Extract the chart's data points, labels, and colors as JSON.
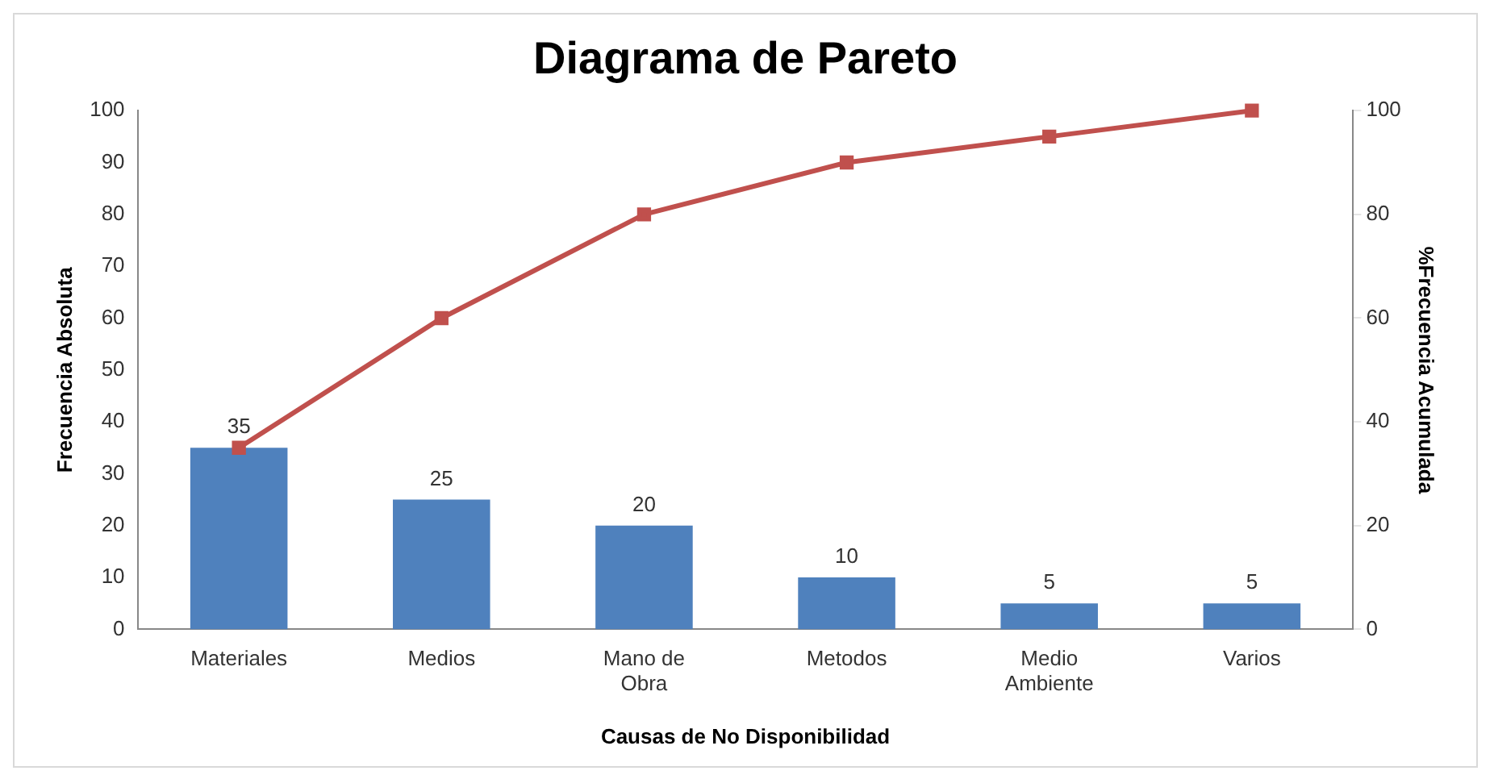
{
  "chart_data": {
    "type": "bar",
    "title": "Diagrama de Pareto",
    "xlabel": "Causas de No Disponibilidad",
    "ylabel": "Frecuencia Absoluta",
    "y2label": "%Frecuencia Acumulada",
    "categories": [
      "Materiales",
      "Medios",
      "Mano de Obra",
      "Metodos",
      "Medio Ambiente",
      "Varios"
    ],
    "series": [
      {
        "color": "#4f81bd",
        "values": [
          35,
          25,
          20,
          10,
          5,
          5
        ],
        "value_labels": [
          "35",
          "25",
          "20",
          "10",
          "5",
          "5"
        ]
      },
      {
        "type": "line",
        "axis": "y2",
        "color": "#c0504d",
        "marker": "square",
        "values": [
          35,
          60,
          80,
          90,
          95,
          100
        ]
      }
    ],
    "ylim": [
      0,
      100
    ],
    "yticks": [
      0,
      10,
      20,
      30,
      40,
      50,
      60,
      70,
      80,
      90,
      100
    ],
    "y2lim": [
      0,
      100
    ],
    "y2ticks": [
      0,
      20,
      40,
      60,
      80,
      100
    ],
    "grid": false,
    "legend": false
  }
}
